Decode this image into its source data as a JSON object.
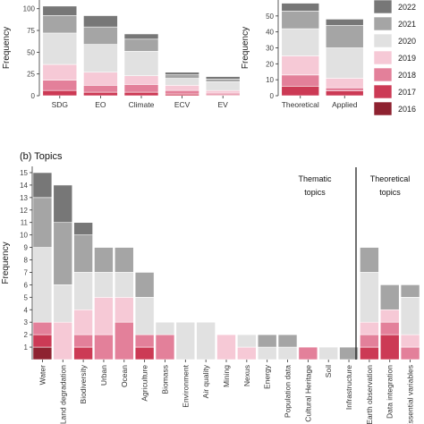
{
  "colors": {
    "2016": "#8e2230",
    "2017": "#cc3a55",
    "2018": "#e3809a",
    "2019": "#f6c9d6",
    "2020": "#e1e1e1",
    "2021": "#a5a5a5",
    "2022": "#777777"
  },
  "legend": {
    "title": "",
    "years": [
      "2022",
      "2021",
      "2020",
      "2019",
      "2018",
      "2017",
      "2016"
    ]
  },
  "panel_b_title": "(b) Topics",
  "annotations": {
    "thematic": [
      "Thematic",
      "topics"
    ],
    "theoretical": [
      "Theoretical",
      "topics"
    ]
  },
  "chart_data": [
    {
      "type": "bar",
      "stacked": true,
      "ylabel": "Frequency",
      "xlabel": "",
      "ylim": [
        0,
        110
      ],
      "yticks": [
        0,
        25,
        50,
        75,
        100
      ],
      "categories": [
        "SDG",
        "EO",
        "Climate",
        "ECV",
        "EV"
      ],
      "series": [
        {
          "name": "2016",
          "values": [
            0,
            0,
            0,
            0,
            0
          ]
        },
        {
          "name": "2017",
          "values": [
            6,
            4,
            4,
            2,
            1
          ]
        },
        {
          "name": "2018",
          "values": [
            12,
            8,
            9,
            4,
            2
          ]
        },
        {
          "name": "2019",
          "values": [
            18,
            15,
            10,
            6,
            3
          ]
        },
        {
          "name": "2020",
          "values": [
            36,
            32,
            28,
            8,
            10
          ]
        },
        {
          "name": "2021",
          "values": [
            20,
            20,
            14,
            4,
            3
          ]
        },
        {
          "name": "2022",
          "values": [
            11,
            13,
            6,
            3,
            3
          ]
        }
      ]
    },
    {
      "type": "bar",
      "stacked": true,
      "ylabel": "Frequency",
      "xlabel": "",
      "ylim": [
        0,
        60
      ],
      "yticks": [
        0,
        10,
        20,
        30,
        40,
        50
      ],
      "categories": [
        "Theoretical",
        "Applied"
      ],
      "series": [
        {
          "name": "2016",
          "values": [
            0,
            0
          ]
        },
        {
          "name": "2017",
          "values": [
            6,
            3
          ]
        },
        {
          "name": "2018",
          "values": [
            7,
            2
          ]
        },
        {
          "name": "2019",
          "values": [
            12,
            6
          ]
        },
        {
          "name": "2020",
          "values": [
            17,
            19
          ]
        },
        {
          "name": "2021",
          "values": [
            11,
            14
          ]
        },
        {
          "name": "2022",
          "values": [
            5,
            4
          ]
        }
      ]
    },
    {
      "type": "bar",
      "stacked": true,
      "ylabel": "Frequency",
      "xlabel": "",
      "ylim": [
        0,
        15.5
      ],
      "yticks": [
        1,
        2,
        3,
        4,
        5,
        6,
        7,
        8,
        9,
        10,
        11,
        12,
        13,
        14,
        15
      ],
      "categories": [
        "Water",
        "Land degradation",
        "Biodiversity",
        "Urban",
        "Ocean",
        "Agriculture",
        "Biomass",
        "Environment",
        "Air quality",
        "Mining",
        "Nexus",
        "Energy",
        "Population data",
        "Cultural Heritage",
        "Soil",
        "Infrastructure",
        "Earth observation",
        "Data integration",
        "Essential variables"
      ],
      "series": [
        {
          "name": "2016",
          "values": [
            1,
            0,
            0,
            0,
            0,
            0,
            0,
            0,
            0,
            0,
            0,
            0,
            0,
            0,
            0,
            0,
            0,
            0,
            0
          ]
        },
        {
          "name": "2017",
          "values": [
            1,
            0,
            1,
            0,
            0,
            1,
            0,
            0,
            0,
            0,
            0,
            0,
            0,
            0,
            0,
            0,
            1,
            2,
            0
          ]
        },
        {
          "name": "2018",
          "values": [
            1,
            0,
            1,
            2,
            3,
            1,
            2,
            0,
            0,
            0,
            0,
            0,
            0,
            1,
            0,
            0,
            1,
            1,
            1
          ]
        },
        {
          "name": "2019",
          "values": [
            0,
            3,
            2,
            3,
            2,
            0,
            0,
            0,
            0,
            2,
            1,
            0,
            0,
            0,
            0,
            0,
            1,
            1,
            1
          ]
        },
        {
          "name": "2020",
          "values": [
            6,
            3,
            3,
            2,
            2,
            3,
            1,
            3,
            3,
            0,
            1,
            1,
            1,
            0,
            1,
            0,
            4,
            0,
            3
          ]
        },
        {
          "name": "2021",
          "values": [
            4,
            5,
            3,
            2,
            2,
            2,
            0,
            0,
            0,
            0,
            0,
            1,
            1,
            0,
            0,
            1,
            2,
            2,
            1
          ]
        },
        {
          "name": "2022",
          "values": [
            2,
            3,
            1,
            0,
            0,
            0,
            0,
            0,
            0,
            0,
            0,
            0,
            0,
            0,
            0,
            0,
            0,
            0,
            0
          ]
        }
      ]
    }
  ]
}
